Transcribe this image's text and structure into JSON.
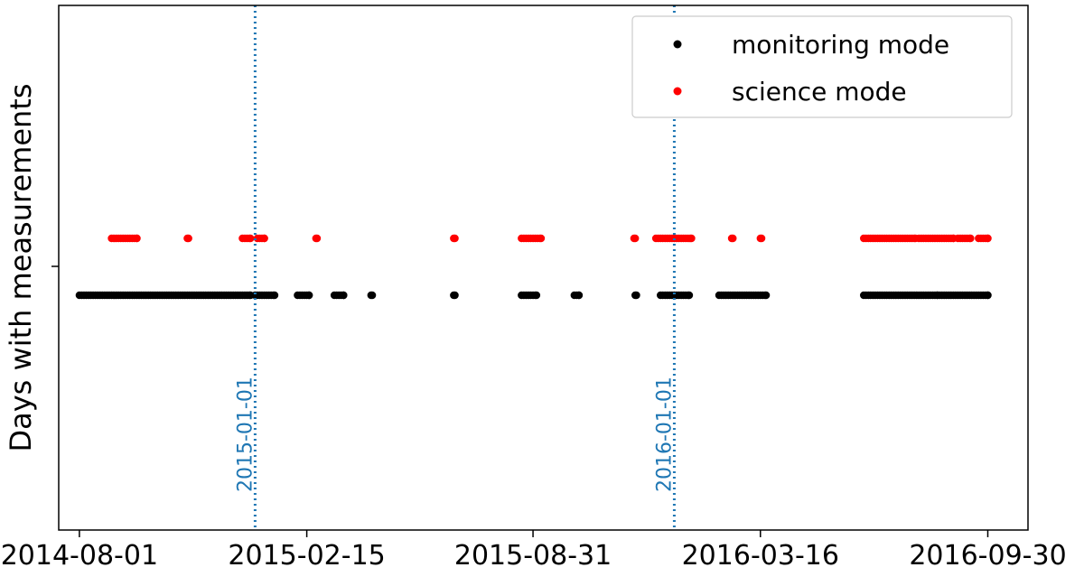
{
  "chart_data": {
    "type": "scatter",
    "title": "",
    "xlabel": "",
    "ylabel": "Days with measurements",
    "xlim": [
      "2014-07-14",
      "2016-11-04"
    ],
    "xticks": [
      "2014-08-01",
      "2015-02-15",
      "2015-08-31",
      "2016-03-16",
      "2016-09-30"
    ],
    "grid": false,
    "legend_position": "top-right",
    "vlines": [
      {
        "date": "2015-01-01",
        "label": "2015-01-01",
        "color": "#1f77b4",
        "style": "dotted"
      },
      {
        "date": "2016-01-01",
        "label": "2016-01-01",
        "color": "#1f77b4",
        "style": "dotted"
      }
    ],
    "series": [
      {
        "name": "monitoring mode",
        "color": "#000000",
        "level": "lower",
        "ranges": [
          [
            "2014-08-01",
            "2014-12-28"
          ],
          [
            "2015-01-01",
            "2015-01-18"
          ],
          [
            "2015-02-07",
            "2015-02-17"
          ],
          [
            "2015-03-11",
            "2015-03-19"
          ],
          [
            "2015-04-12",
            "2015-04-13"
          ],
          [
            "2015-06-23",
            "2015-06-24"
          ],
          [
            "2015-08-21",
            "2015-09-03"
          ],
          [
            "2015-10-06",
            "2015-10-10"
          ],
          [
            "2015-11-28",
            "2015-11-29"
          ],
          [
            "2015-12-20",
            "2016-01-14"
          ],
          [
            "2016-02-09",
            "2016-03-21"
          ],
          [
            "2016-06-14",
            "2016-08-17"
          ],
          [
            "2016-08-19",
            "2016-09-30"
          ]
        ]
      },
      {
        "name": "science mode",
        "color": "#ff0000",
        "level": "upper",
        "ranges": [
          [
            "2014-08-29",
            "2014-09-20"
          ],
          [
            "2014-11-03",
            "2014-11-04"
          ],
          [
            "2014-12-21",
            "2014-12-28"
          ],
          [
            "2015-01-03",
            "2015-01-09"
          ],
          [
            "2015-02-23",
            "2015-02-24"
          ],
          [
            "2015-06-23",
            "2015-06-24"
          ],
          [
            "2015-08-21",
            "2015-09-07"
          ],
          [
            "2015-11-27",
            "2015-11-28"
          ],
          [
            "2015-12-16",
            "2016-01-16"
          ],
          [
            "2016-02-20",
            "2016-02-21"
          ],
          [
            "2016-03-16",
            "2016-03-17"
          ],
          [
            "2016-06-14",
            "2016-07-29"
          ],
          [
            "2016-08-01",
            "2016-08-31"
          ],
          [
            "2016-09-04",
            "2016-09-15"
          ],
          [
            "2016-09-22",
            "2016-09-30"
          ]
        ]
      }
    ]
  }
}
